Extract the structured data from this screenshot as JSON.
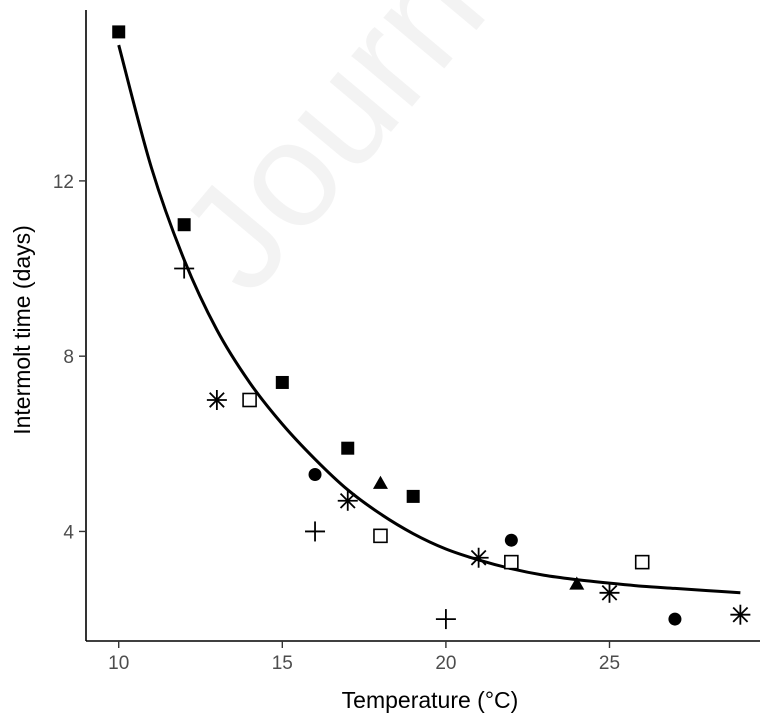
{
  "watermark": "Journal Pre-proof",
  "chart_data": {
    "type": "scatter",
    "title": "",
    "xlabel": "Temperature (°C)",
    "ylabel": "Intermolt time (days)",
    "xlim": [
      9.0,
      29.6
    ],
    "ylim": [
      1.5,
      15.9
    ],
    "xticks": [
      10,
      15,
      20,
      25
    ],
    "yticks": [
      4,
      8,
      12
    ],
    "grid": false,
    "legend": "none",
    "series": [
      {
        "marker": "filled-square",
        "points": [
          [
            10,
            15.4
          ],
          [
            12,
            11.0
          ],
          [
            15,
            7.4
          ],
          [
            17,
            5.9
          ],
          [
            19,
            4.8
          ]
        ]
      },
      {
        "marker": "plus",
        "points": [
          [
            12,
            10.0
          ],
          [
            16,
            4.0
          ],
          [
            20,
            2.0
          ]
        ]
      },
      {
        "marker": "asterisk",
        "points": [
          [
            13,
            7.0
          ],
          [
            17,
            4.7
          ],
          [
            21,
            3.4
          ],
          [
            25,
            2.6
          ],
          [
            29,
            2.1
          ]
        ]
      },
      {
        "marker": "open-square",
        "points": [
          [
            14,
            7.0
          ],
          [
            18,
            3.9
          ],
          [
            22,
            3.3
          ],
          [
            26,
            3.3
          ]
        ]
      },
      {
        "marker": "filled-circle",
        "points": [
          [
            16,
            5.3
          ],
          [
            22,
            3.8
          ],
          [
            27,
            2.0
          ]
        ]
      },
      {
        "marker": "filled-triangle",
        "points": [
          [
            18,
            5.1
          ],
          [
            24,
            2.8
          ]
        ]
      }
    ],
    "fit_curve": {
      "x": [
        10,
        11,
        12,
        13,
        14,
        15,
        16,
        17,
        18,
        19,
        20,
        21,
        22,
        23,
        24,
        25,
        26,
        27,
        28,
        29
      ],
      "y": [
        15.1,
        12.3,
        10.2,
        8.6,
        7.4,
        6.45,
        5.65,
        4.95,
        4.4,
        3.95,
        3.6,
        3.35,
        3.15,
        3.0,
        2.9,
        2.82,
        2.75,
        2.7,
        2.65,
        2.6
      ]
    }
  }
}
